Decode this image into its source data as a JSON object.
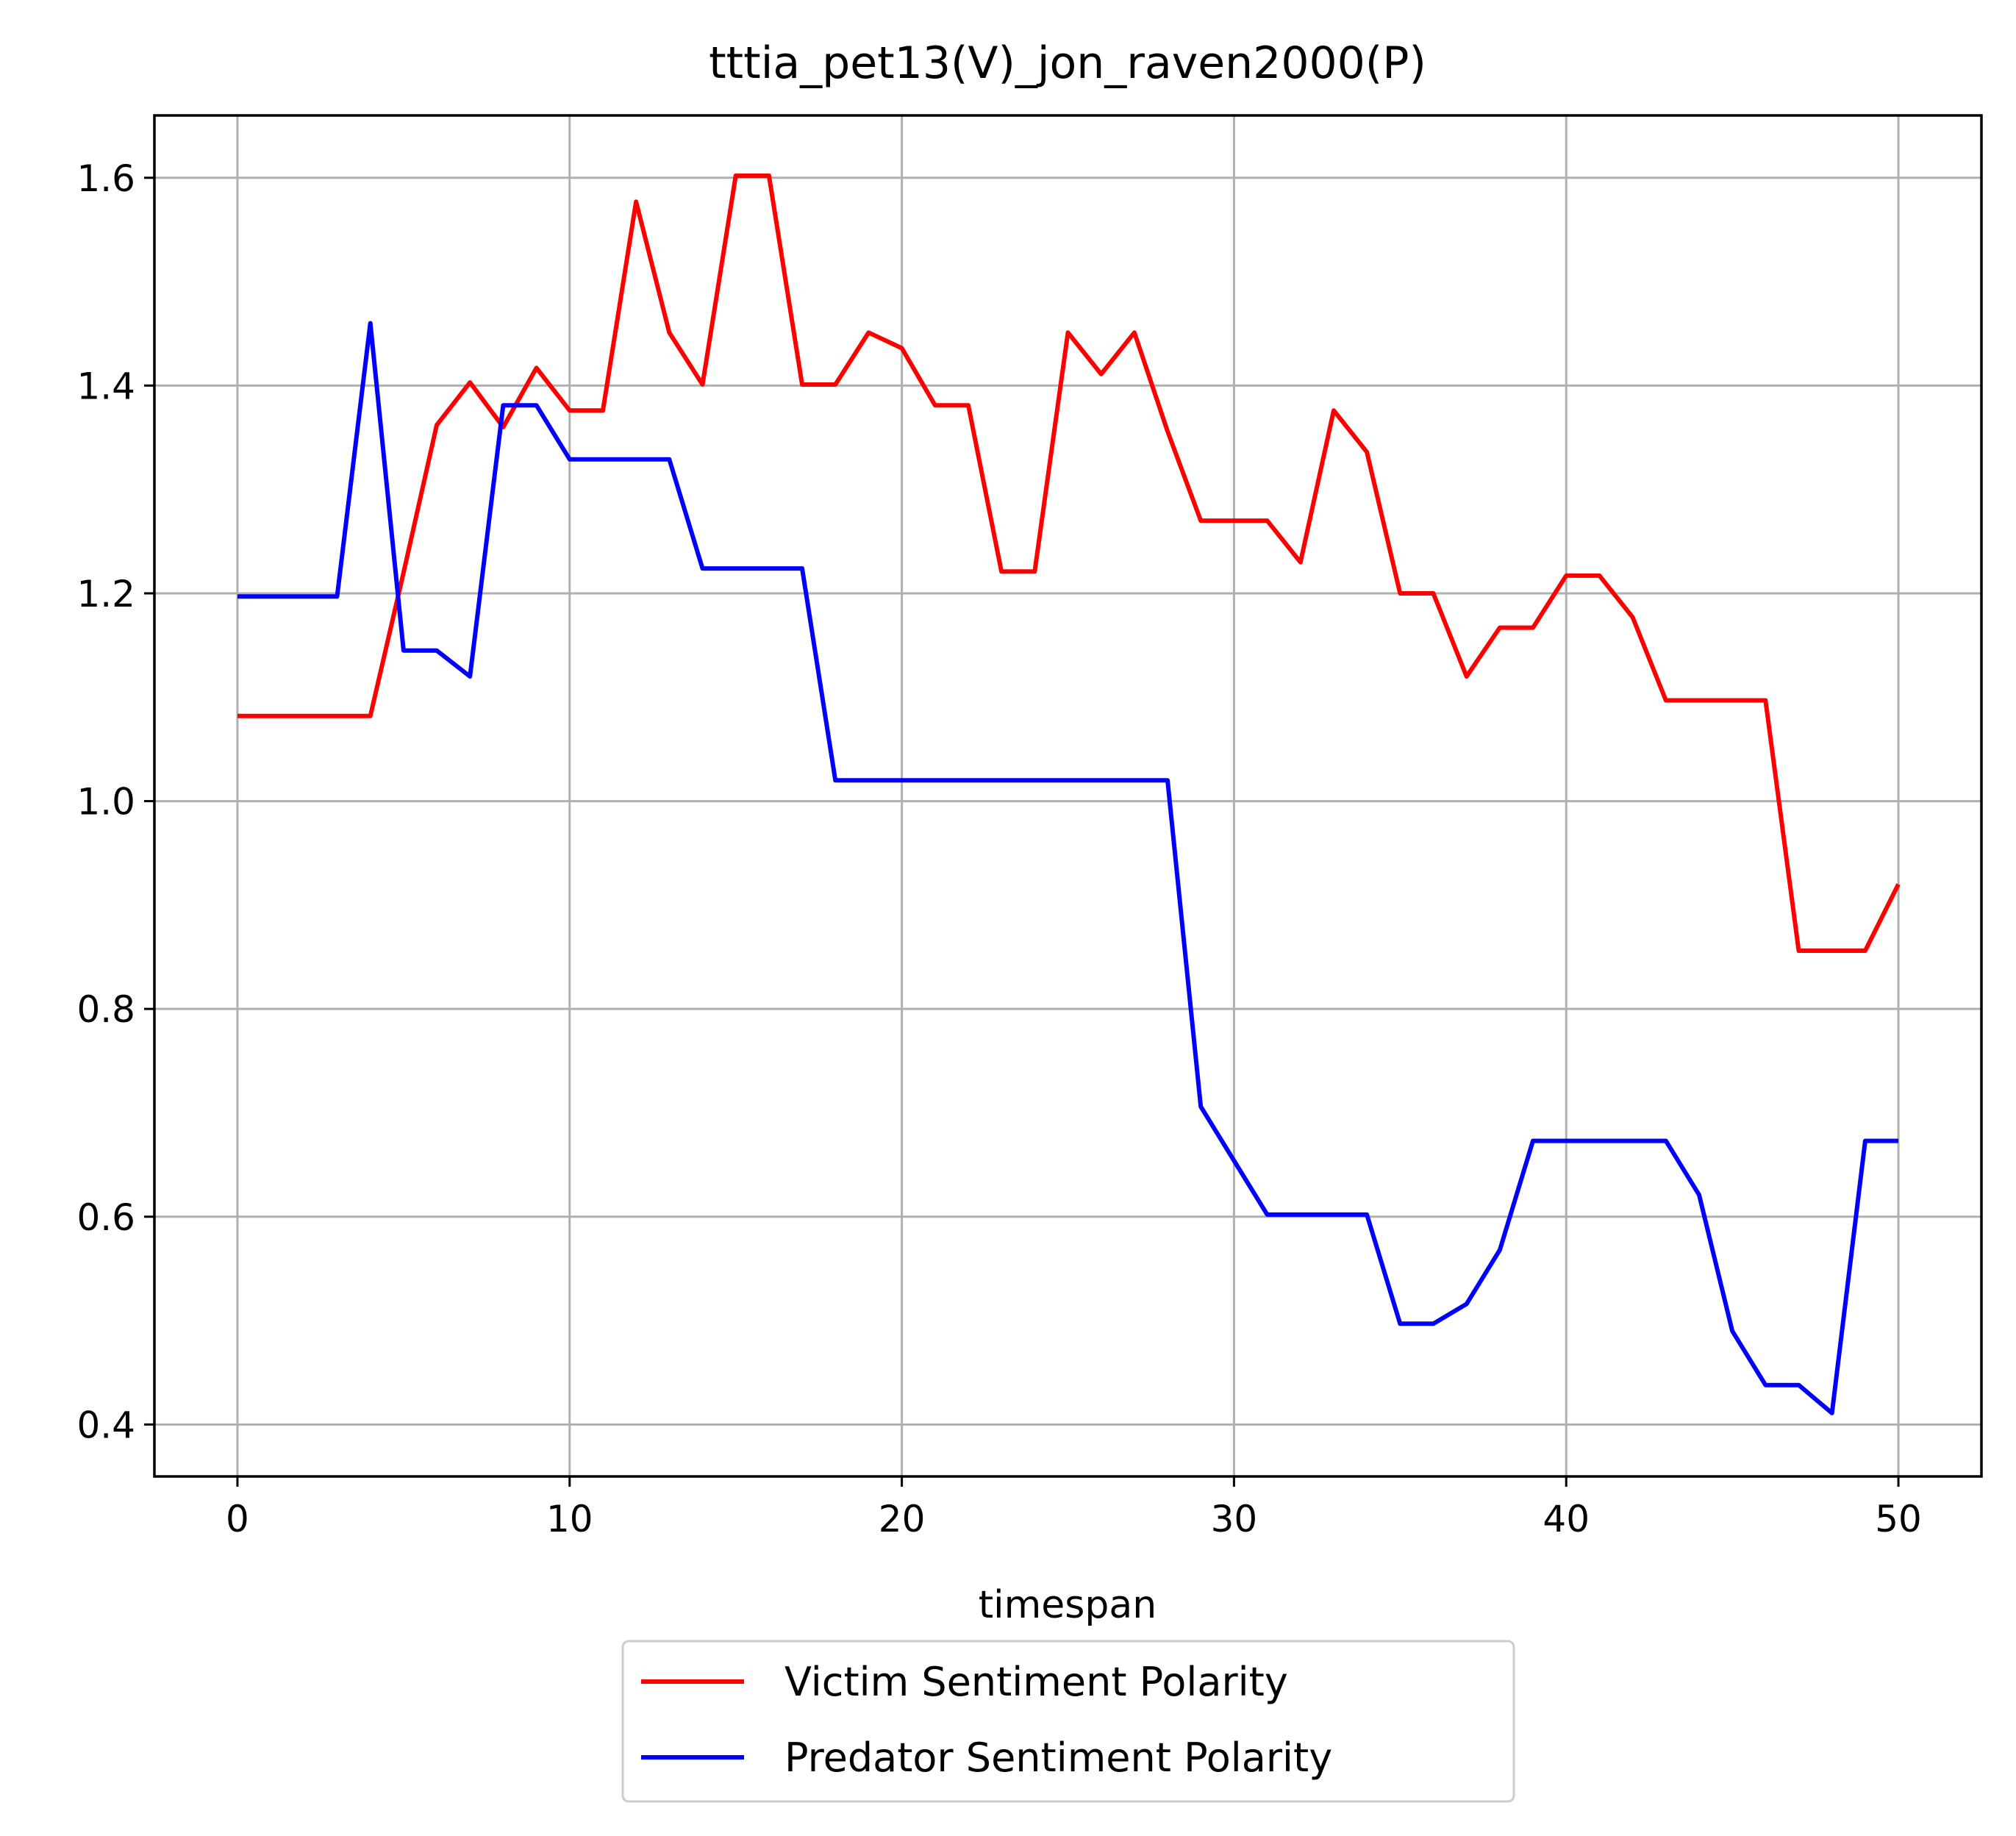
{
  "chart_data": {
    "type": "line",
    "title": "tttia_pet13(V)_jon_raven2000(P)",
    "xlabel": "timespan",
    "ylabel": "",
    "xlim": [
      -2.5,
      52.5
    ],
    "ylim": [
      0.35,
      1.66
    ],
    "x_ticks": [
      0,
      10,
      20,
      30,
      40,
      50
    ],
    "y_ticks": [
      0.4,
      0.6,
      0.8,
      1.0,
      1.2,
      1.4,
      1.6
    ],
    "x_tick_labels": [
      "0",
      "10",
      "20",
      "30",
      "40",
      "50"
    ],
    "y_tick_labels": [
      "0.4",
      "0.6",
      "0.8",
      "1.0",
      "1.2",
      "1.4",
      "1.6"
    ],
    "grid": true,
    "legend_position": "below plot, centered",
    "x": [
      0,
      1,
      2,
      3,
      4,
      5,
      6,
      7,
      8,
      9,
      10,
      11,
      12,
      13,
      14,
      15,
      16,
      17,
      18,
      19,
      20,
      21,
      22,
      23,
      24,
      25,
      26,
      27,
      28,
      29,
      30,
      31,
      32,
      33,
      34,
      35,
      36,
      37,
      38,
      39,
      40,
      41,
      42,
      43,
      44,
      45,
      46,
      47,
      48,
      49,
      50
    ],
    "series": [
      {
        "name": "Victim Sentiment Polarity",
        "color": "#ff0000",
        "values": [
          1.082,
          1.082,
          1.082,
          1.082,
          1.082,
          1.22,
          1.362,
          1.403,
          1.36,
          1.417,
          1.376,
          1.376,
          1.577,
          1.451,
          1.401,
          1.602,
          1.602,
          1.401,
          1.401,
          1.451,
          1.436,
          1.381,
          1.381,
          1.221,
          1.221,
          1.451,
          1.411,
          1.451,
          1.356,
          1.27,
          1.27,
          1.27,
          1.23,
          1.376,
          1.336,
          1.2,
          1.2,
          1.12,
          1.167,
          1.167,
          1.217,
          1.217,
          1.177,
          1.097,
          1.097,
          1.097,
          1.097,
          0.856,
          0.856,
          0.856,
          0.92
        ]
      },
      {
        "name": "Predator Sentiment Polarity",
        "color": "#0000ff",
        "values": [
          1.197,
          1.197,
          1.197,
          1.197,
          1.46,
          1.145,
          1.145,
          1.12,
          1.381,
          1.381,
          1.329,
          1.329,
          1.329,
          1.329,
          1.224,
          1.224,
          1.224,
          1.224,
          1.02,
          1.02,
          1.02,
          1.02,
          1.02,
          1.02,
          1.02,
          1.02,
          1.02,
          1.02,
          1.02,
          0.706,
          0.654,
          0.602,
          0.602,
          0.602,
          0.602,
          0.497,
          0.497,
          0.516,
          0.568,
          0.673,
          0.673,
          0.673,
          0.673,
          0.673,
          0.621,
          0.49,
          0.438,
          0.438,
          0.411,
          0.673,
          0.673
        ]
      }
    ]
  }
}
